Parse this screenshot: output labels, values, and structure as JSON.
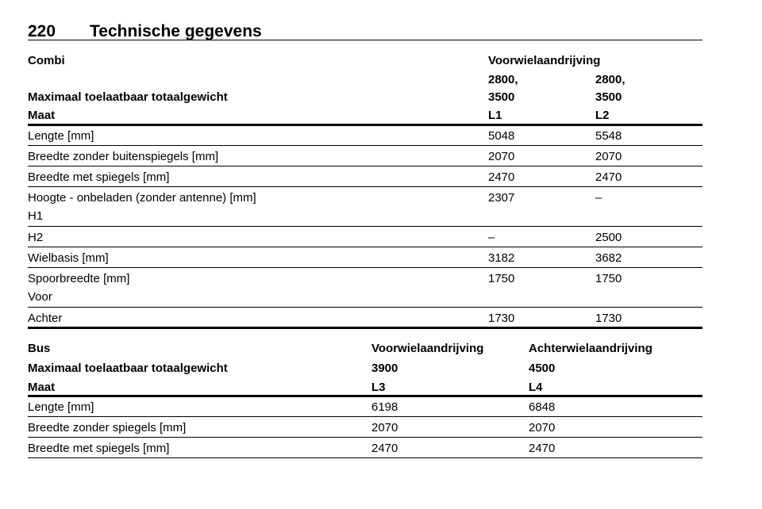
{
  "header": {
    "page": "220",
    "title": "Technische gegevens"
  },
  "table1": {
    "head": {
      "label": "Combi",
      "drive": "Voorwielaandrijving",
      "weight_label": "Maximaal toelaatbaar totaalgewicht",
      "weights": [
        [
          "2800,",
          "3500"
        ],
        [
          "2800,",
          "3500"
        ]
      ],
      "size_label": "Maat",
      "sizes": [
        "L1",
        "L2"
      ]
    },
    "rows": [
      {
        "cells": [
          "Lengte [mm]",
          "5048",
          "5548"
        ]
      },
      {
        "cells": [
          "Breedte zonder buitenspiegels [mm]",
          "2070",
          "2070"
        ]
      },
      {
        "cells": [
          "Breedte met spiegels [mm]",
          "2470",
          "2470"
        ]
      },
      {
        "cells": [
          "Hoogte - onbeladen (zonder antenne) [mm]",
          "2307",
          "–"
        ],
        "note": "H1"
      },
      {
        "cells": [
          "H2",
          "–",
          "2500"
        ]
      },
      {
        "cells": [
          "Wielbasis [mm]",
          "3182",
          "3682"
        ]
      },
      {
        "cells": [
          "Spoorbreedte [mm]",
          "1750",
          "1750"
        ],
        "note": "Voor"
      },
      {
        "cells": [
          "Achter",
          "1730",
          "1730"
        ]
      }
    ]
  },
  "table2": {
    "head": [
      [
        "Bus",
        "Voorwielaandrijving",
        "Achterwielaandrijving"
      ],
      [
        "Maximaal toelaatbaar totaalgewicht",
        "3900",
        "4500"
      ],
      [
        "Maat",
        "L3",
        "L4"
      ]
    ],
    "rows": [
      [
        "Lengte [mm]",
        "6198",
        "6848"
      ],
      [
        "Breedte zonder spiegels [mm]",
        "2070",
        "2070"
      ],
      [
        "Breedte met spiegels [mm]",
        "2470",
        "2470"
      ]
    ]
  }
}
